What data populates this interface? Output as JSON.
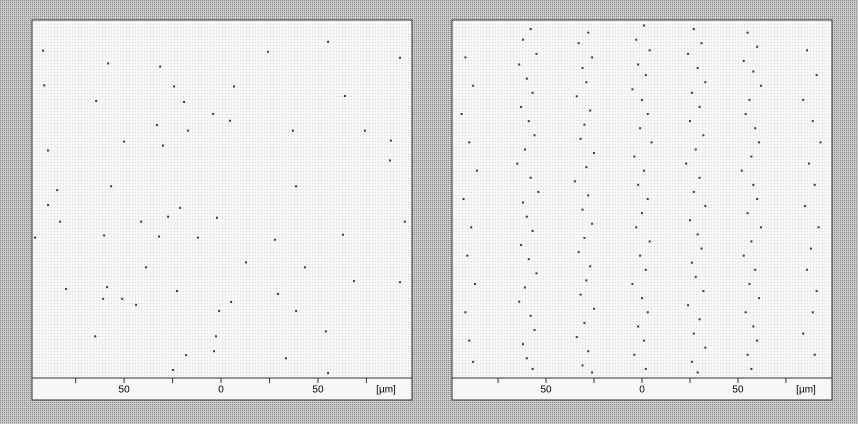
{
  "chart_data": [
    {
      "type": "scatter",
      "xlabel": "[µm]",
      "color": "#3a3a3a",
      "xlim": [
        -97.5,
        98.5
      ],
      "ylim": [
        0,
        100
      ],
      "xticks": [
        {
          "value": -50,
          "label": "50"
        },
        0,
        50
      ],
      "xminorticks": [
        -75,
        -25,
        25,
        75
      ],
      "x": [
        -91.8,
        -58.2,
        -31.4,
        24.2,
        55.2,
        92.3,
        -91.2,
        -64.4,
        -24.2,
        6.7,
        -19.1,
        63.9,
        -4.1,
        -33.0,
        4.6,
        -50.0,
        -17.0,
        37.1,
        74.2,
        -89.2,
        -29.9,
        87.6,
        -84.5,
        -56.7,
        87.1,
        38.7,
        -89.2,
        -21.1,
        -27.3,
        -2.1,
        -83.0,
        -41.2,
        94.8,
        -95.9,
        -60.3,
        -32.0,
        -11.9,
        27.8,
        62.9,
        -38.7,
        12.9,
        43.3,
        -79.9,
        -60.8,
        -51.0,
        -43.8,
        -22.7,
        29.4,
        68.6,
        92.3,
        -58.8,
        5.2,
        -1.0,
        38.7,
        54.1,
        -64.9,
        -2.6,
        -18.0,
        33.5,
        -3.6,
        -24.7,
        55.2
      ],
      "values": [
        91.9,
        88.3,
        87.4,
        91.6,
        94.4,
        89.9,
        82.1,
        77.7,
        81.8,
        81.8,
        77.4,
        79.1,
        74.0,
        70.9,
        72.1,
        66.2,
        69.3,
        69.3,
        69.3,
        63.7,
        65.1,
        66.5,
        52.5,
        53.6,
        60.9,
        53.6,
        48.3,
        47.5,
        45.0,
        44.7,
        43.6,
        43.6,
        43.6,
        39.1,
        39.7,
        39.4,
        39.1,
        38.5,
        39.9,
        30.7,
        32.1,
        30.7,
        24.6,
        21.8,
        21.8,
        20.1,
        24.0,
        23.2,
        26.8,
        26.5,
        25.1,
        20.9,
        18.4,
        18.4,
        12.6,
        11.2,
        11.2,
        5.9,
        5.0,
        7.0,
        1.7,
        0.8
      ]
    },
    {
      "type": "scatter",
      "xlabel": "[µm]",
      "color": "#3a3a3a",
      "xlim": [
        -99,
        99
      ],
      "ylim": [
        0,
        100
      ],
      "xticks": [
        {
          "value": -50,
          "label": "50"
        },
        0,
        50
      ],
      "xminorticks": [
        -75,
        -25,
        25,
        75
      ],
      "x": [
        -58,
        -62,
        -55,
        -64,
        -60,
        -57,
        -63,
        -59,
        -56,
        -61,
        -65,
        -58,
        -54,
        -62,
        -60,
        -57,
        -63,
        -59,
        -55,
        -61,
        -64,
        -58,
        -56,
        -62,
        -60,
        -57,
        -28,
        -33,
        -26,
        -31,
        -29,
        -34,
        -27,
        -30,
        -32,
        -25,
        -29,
        -35,
        -28,
        -31,
        -26,
        -30,
        -33,
        -27,
        -29,
        -32,
        -25,
        -30,
        -34,
        -28,
        -31,
        -26,
        1,
        -3,
        4,
        -2,
        2,
        -5,
        0,
        3,
        -1,
        5,
        -4,
        1,
        -2,
        3,
        0,
        -3,
        4,
        -1,
        2,
        -5,
        0,
        3,
        -2,
        1,
        -4,
        2,
        27,
        31,
        24,
        29,
        33,
        26,
        30,
        25,
        32,
        28,
        23,
        30,
        27,
        33,
        25,
        29,
        31,
        26,
        28,
        32,
        24,
        30,
        27,
        33,
        26,
        29,
        55,
        60,
        53,
        58,
        62,
        56,
        54,
        59,
        61,
        57,
        52,
        58,
        60,
        55,
        62,
        57,
        53,
        59,
        56,
        61,
        54,
        58,
        60,
        55,
        57,
        86,
        91,
        84,
        89,
        93,
        87,
        90,
        85,
        92,
        88,
        86,
        91,
        89,
        84,
        90,
        -92,
        -88,
        -94,
        -90,
        -86,
        -93,
        -89,
        -91,
        -87,
        -92,
        -90,
        -88
      ],
      "values": [
        98,
        95,
        91,
        88,
        84,
        80,
        76,
        72,
        68,
        64,
        60,
        56,
        52,
        49,
        45,
        41,
        37,
        33,
        29,
        25,
        21,
        17,
        13,
        9,
        5,
        2,
        97,
        94,
        90,
        87,
        83,
        79,
        75,
        71,
        67,
        63,
        59,
        55,
        51,
        47,
        43,
        39,
        35,
        31,
        27,
        23,
        19,
        15,
        11,
        7,
        3,
        1,
        99,
        95,
        92,
        88,
        85,
        81,
        78,
        74,
        70,
        66,
        62,
        58,
        54,
        50,
        46,
        42,
        38,
        34,
        30,
        26,
        22,
        18,
        14,
        10,
        6,
        2,
        98,
        94,
        91,
        87,
        83,
        80,
        76,
        72,
        68,
        64,
        60,
        56,
        52,
        48,
        44,
        40,
        36,
        32,
        28,
        24,
        20,
        16,
        12,
        8,
        4,
        1,
        97,
        93,
        89,
        86,
        82,
        78,
        74,
        70,
        66,
        62,
        58,
        54,
        50,
        46,
        42,
        38,
        34,
        30,
        26,
        22,
        18,
        14,
        10,
        6,
        2,
        92,
        85,
        78,
        72,
        66,
        60,
        54,
        48,
        42,
        36,
        30,
        24,
        18,
        12,
        6,
        90,
        82,
        74,
        66,
        58,
        50,
        42,
        34,
        26,
        18,
        10,
        4
      ]
    }
  ]
}
